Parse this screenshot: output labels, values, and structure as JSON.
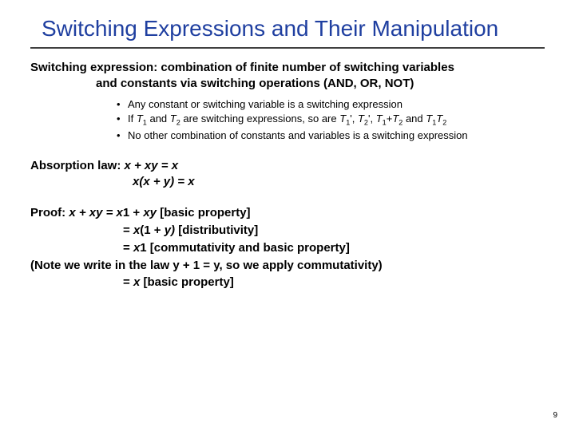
{
  "title": "Switching Expressions and Their Manipulation",
  "definition": {
    "label": "Switching expression:",
    "line1": " combination of finite number of switching variables",
    "line2": "and constants via switching operations (AND, OR, NOT)"
  },
  "bullets": [
    "Any constant or switching variable is a switching expression",
    "",
    "No other combination of constants and variables is a switching expression"
  ],
  "bullet2": {
    "a": "If ",
    "t1": "T",
    "s1": "1",
    "b": " and ",
    "t2": "T",
    "s2": "2",
    "c": " are switching expressions, so are ",
    "t1p": "T",
    "s1p": "1",
    "p1": "', ",
    "t2p": "T",
    "s2p": "2",
    "p2": "', ",
    "t1a": "T",
    "s1a": "1",
    "plus": "+",
    "t2a": "T",
    "s2a": "2",
    "d": " and ",
    "t1m": "T",
    "s1m": "1",
    "t2m": "T",
    "s2m": "2"
  },
  "law": {
    "label": "Absorption law:",
    "eq1a": " x + xy = x",
    "eq2a": "x(x + y) = x"
  },
  "proof": {
    "label": "Proof:",
    "l1a": " x + xy = x",
    "l1b": "1 + ",
    "l1c": "xy",
    "l1d": "  [basic property]",
    "l2a": "= ",
    "l2b": "x",
    "l2c": "(1 + ",
    "l2d": "y)",
    "l2e": "  [distributivity]",
    "l3a": "= ",
    "l3b": "x",
    "l3c": "1  [commutativity and basic property]",
    "note": "(Note we write in the law y + 1 = y, so we apply commutativity)",
    "l4a": "= ",
    "l4b": "x",
    "l4c": "  [basic property]"
  },
  "pagenum": "9"
}
